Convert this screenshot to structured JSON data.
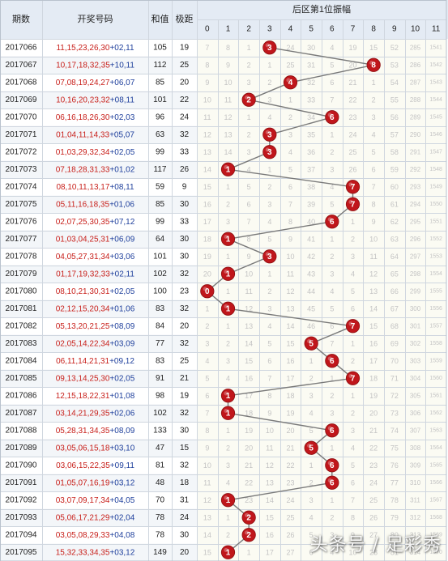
{
  "chart_data": {
    "type": "table",
    "headers": {
      "period": "期数",
      "numbers": "开奖号码",
      "sum": "和值",
      "span": "极距",
      "zone": "后区第1位振幅",
      "amplitudes": [
        "0",
        "1",
        "2",
        "3",
        "4",
        "5",
        "6",
        "7",
        "8",
        "9",
        "10",
        "11"
      ]
    },
    "rows": [
      {
        "period": "2017066",
        "front": "11,15,23,26,30",
        "back": "02,11",
        "sum": 105,
        "span": 19,
        "hit": 3
      },
      {
        "period": "2017067",
        "front": "10,17,18,32,35",
        "back": "10,11",
        "sum": 112,
        "span": 25,
        "hit": 8
      },
      {
        "period": "2017068",
        "front": "07,08,19,24,27",
        "back": "06,07",
        "sum": 85,
        "span": 20,
        "hit": 4
      },
      {
        "period": "2017069",
        "front": "10,16,20,23,32",
        "back": "08,11",
        "sum": 101,
        "span": 22,
        "hit": 2
      },
      {
        "period": "2017070",
        "front": "06,16,18,26,30",
        "back": "02,03",
        "sum": 96,
        "span": 24,
        "hit": 6
      },
      {
        "period": "2017071",
        "front": "01,04,11,14,33",
        "back": "05,07",
        "sum": 63,
        "span": 32,
        "hit": 3
      },
      {
        "period": "2017072",
        "front": "01,03,29,32,34",
        "back": "02,05",
        "sum": 99,
        "span": 33,
        "hit": 3
      },
      {
        "period": "2017073",
        "front": "07,18,28,31,33",
        "back": "01,02",
        "sum": 117,
        "span": 26,
        "hit": 1
      },
      {
        "period": "2017074",
        "front": "08,10,11,13,17",
        "back": "08,11",
        "sum": 59,
        "span": 9,
        "hit": 7
      },
      {
        "period": "2017075",
        "front": "05,11,16,18,35",
        "back": "01,06",
        "sum": 85,
        "span": 30,
        "hit": 7
      },
      {
        "period": "2017076",
        "front": "02,07,25,30,35",
        "back": "07,12",
        "sum": 99,
        "span": 33,
        "hit": 6
      },
      {
        "period": "2017077",
        "front": "01,03,04,25,31",
        "back": "06,09",
        "sum": 64,
        "span": 30,
        "hit": 1
      },
      {
        "period": "2017078",
        "front": "04,05,27,31,34",
        "back": "03,06",
        "sum": 101,
        "span": 30,
        "hit": 3
      },
      {
        "period": "2017079",
        "front": "01,17,19,32,33",
        "back": "02,11",
        "sum": 102,
        "span": 32,
        "hit": 1
      },
      {
        "period": "2017080",
        "front": "08,10,21,30,31",
        "back": "02,05",
        "sum": 100,
        "span": 23,
        "hit": 0
      },
      {
        "period": "2017081",
        "front": "02,12,15,20,34",
        "back": "01,06",
        "sum": 83,
        "span": 32,
        "hit": 1
      },
      {
        "period": "2017082",
        "front": "05,13,20,21,25",
        "back": "08,09",
        "sum": 84,
        "span": 20,
        "hit": 7
      },
      {
        "period": "2017083",
        "front": "02,05,14,22,34",
        "back": "03,09",
        "sum": 77,
        "span": 32,
        "hit": 5
      },
      {
        "period": "2017084",
        "front": "06,11,14,21,31",
        "back": "09,12",
        "sum": 83,
        "span": 25,
        "hit": 6
      },
      {
        "period": "2017085",
        "front": "09,13,14,25,30",
        "back": "02,05",
        "sum": 91,
        "span": 21,
        "hit": 7
      },
      {
        "period": "2017086",
        "front": "12,15,18,22,31",
        "back": "01,08",
        "sum": 98,
        "span": 19,
        "hit": 1
      },
      {
        "period": "2017087",
        "front": "03,14,21,29,35",
        "back": "02,06",
        "sum": 102,
        "span": 32,
        "hit": 1
      },
      {
        "period": "2017088",
        "front": "05,28,31,34,35",
        "back": "08,09",
        "sum": 133,
        "span": 30,
        "hit": 6
      },
      {
        "period": "2017089",
        "front": "03,05,06,15,18",
        "back": "03,10",
        "sum": 47,
        "span": 15,
        "hit": 5
      },
      {
        "period": "2017090",
        "front": "03,06,15,22,35",
        "back": "09,11",
        "sum": 81,
        "span": 32,
        "hit": 6
      },
      {
        "period": "2017091",
        "front": "01,05,07,16,19",
        "back": "03,12",
        "sum": 48,
        "span": 18,
        "hit": 6
      },
      {
        "period": "2017092",
        "front": "03,07,09,17,34",
        "back": "04,05",
        "sum": 70,
        "span": 31,
        "hit": 1
      },
      {
        "period": "2017093",
        "front": "05,06,17,21,29",
        "back": "02,04",
        "sum": 78,
        "span": 24,
        "hit": 2
      },
      {
        "period": "2017094",
        "front": "03,05,08,29,33",
        "back": "04,08",
        "sum": 78,
        "span": 30,
        "hit": 2
      },
      {
        "period": "2017095",
        "front": "15,32,33,34,35",
        "back": "03,12",
        "sum": 149,
        "span": 20,
        "hit": 1
      }
    ],
    "miss_values": [
      [
        7,
        8,
        1,
        null,
        24,
        30,
        4,
        19,
        15,
        52,
        285,
        1541
      ],
      [
        8,
        9,
        2,
        1,
        25,
        31,
        5,
        20,
        null,
        53,
        286,
        1542
      ],
      [
        9,
        10,
        3,
        2,
        null,
        32,
        6,
        21,
        1,
        54,
        287,
        1543
      ],
      [
        10,
        11,
        null,
        3,
        1,
        33,
        7,
        22,
        2,
        55,
        288,
        1544
      ],
      [
        11,
        12,
        1,
        4,
        2,
        34,
        null,
        23,
        3,
        56,
        289,
        1545
      ],
      [
        12,
        13,
        2,
        null,
        3,
        35,
        1,
        24,
        4,
        57,
        290,
        1546
      ],
      [
        13,
        14,
        3,
        null,
        4,
        36,
        2,
        25,
        5,
        58,
        291,
        1547
      ],
      [
        14,
        null,
        4,
        1,
        5,
        37,
        3,
        26,
        6,
        59,
        292,
        1548
      ],
      [
        15,
        1,
        5,
        2,
        6,
        38,
        4,
        null,
        7,
        60,
        293,
        1549
      ],
      [
        16,
        2,
        6,
        3,
        7,
        39,
        5,
        null,
        8,
        61,
        294,
        1550
      ],
      [
        17,
        3,
        7,
        4,
        8,
        40,
        null,
        1,
        9,
        62,
        295,
        1551
      ],
      [
        18,
        null,
        8,
        5,
        9,
        41,
        1,
        2,
        10,
        63,
        296,
        1552
      ],
      [
        19,
        1,
        9,
        null,
        10,
        42,
        2,
        3,
        11,
        64,
        297,
        1553
      ],
      [
        20,
        null,
        10,
        1,
        11,
        43,
        3,
        4,
        12,
        65,
        298,
        1554
      ],
      [
        null,
        1,
        11,
        2,
        12,
        44,
        4,
        5,
        13,
        66,
        299,
        1555
      ],
      [
        1,
        null,
        12,
        3,
        13,
        45,
        5,
        6,
        14,
        67,
        300,
        1556
      ],
      [
        2,
        1,
        13,
        4,
        14,
        46,
        6,
        null,
        15,
        68,
        301,
        1557
      ],
      [
        3,
        2,
        14,
        5,
        15,
        null,
        7,
        1,
        16,
        69,
        302,
        1558
      ],
      [
        4,
        3,
        15,
        6,
        16,
        1,
        null,
        2,
        17,
        70,
        303,
        1559
      ],
      [
        5,
        4,
        16,
        7,
        17,
        2,
        1,
        null,
        18,
        71,
        304,
        1560
      ],
      [
        6,
        null,
        17,
        8,
        18,
        3,
        2,
        1,
        19,
        72,
        305,
        1561
      ],
      [
        7,
        null,
        18,
        9,
        19,
        4,
        3,
        2,
        20,
        73,
        306,
        1562
      ],
      [
        8,
        1,
        19,
        10,
        20,
        5,
        null,
        3,
        21,
        74,
        307,
        1563
      ],
      [
        9,
        2,
        20,
        11,
        21,
        null,
        1,
        4,
        22,
        75,
        308,
        1564
      ],
      [
        10,
        3,
        21,
        12,
        22,
        1,
        null,
        5,
        23,
        76,
        309,
        1565
      ],
      [
        11,
        4,
        22,
        13,
        23,
        2,
        null,
        6,
        24,
        77,
        310,
        1566
      ],
      [
        12,
        null,
        23,
        14,
        24,
        3,
        1,
        7,
        25,
        78,
        311,
        1567
      ],
      [
        13,
        1,
        null,
        15,
        25,
        4,
        2,
        8,
        26,
        79,
        312,
        1568
      ],
      [
        14,
        2,
        null,
        16,
        26,
        5,
        3,
        9,
        27,
        80,
        313,
        1569
      ],
      [
        15,
        null,
        1,
        17,
        27,
        6,
        4,
        10,
        28,
        81,
        314,
        1570
      ]
    ]
  },
  "watermark": "头条号 / 足彩秀",
  "colors": {
    "header_bg": "#e4ebf4",
    "row_alt": "#f3f6f9",
    "zone_bg": "#fbfbf3",
    "grid": "#cfd6df",
    "number_red": "#c8201b",
    "number_blue": "#1e3f9c",
    "ball": "#c0161b",
    "line": "#7a7a7a",
    "miss_text": "#c4c4c4"
  }
}
